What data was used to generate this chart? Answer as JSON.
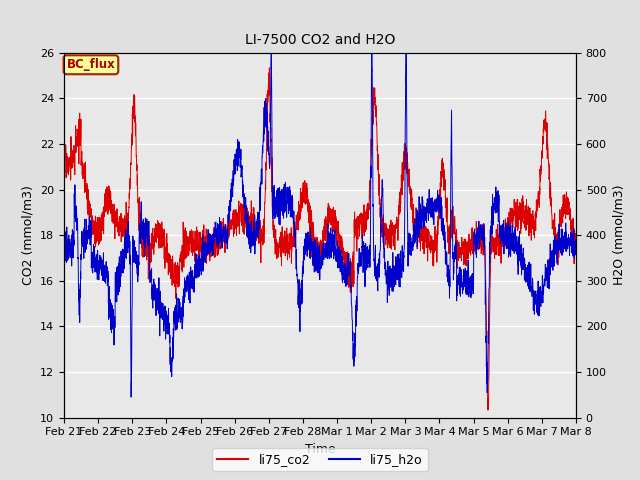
{
  "title": "LI-7500 CO2 and H2O",
  "xlabel": "Time",
  "ylabel_left": "CO2 (mmol/m3)",
  "ylabel_right": "H2O (mmol/m3)",
  "ylim_left": [
    10,
    26
  ],
  "ylim_right": [
    0,
    800
  ],
  "yticks_left": [
    10,
    12,
    14,
    16,
    18,
    20,
    22,
    24,
    26
  ],
  "yticks_right": [
    0,
    100,
    200,
    300,
    400,
    500,
    600,
    700,
    800
  ],
  "color_co2": "#dd0000",
  "color_h2o": "#0000cc",
  "bg_color": "#e0e0e0",
  "plot_bg": "#e8e8e8",
  "legend_label_co2": "li75_co2",
  "legend_label_h2o": "li75_h2o",
  "annotation_text": "BC_flux",
  "annotation_bg": "#ffff99",
  "annotation_border": "#aa2200",
  "xtick_labels": [
    "Feb 21",
    "Feb 22",
    "Feb 23",
    "Feb 24",
    "Feb 25",
    "Feb 26",
    "Feb 27",
    "Feb 28",
    "Mar 1",
    "Mar 2",
    "Mar 3",
    "Mar 4",
    "Mar 5",
    "Mar 6",
    "Mar 7",
    "Mar 8"
  ],
  "figsize": [
    6.4,
    4.8
  ],
  "dpi": 100
}
